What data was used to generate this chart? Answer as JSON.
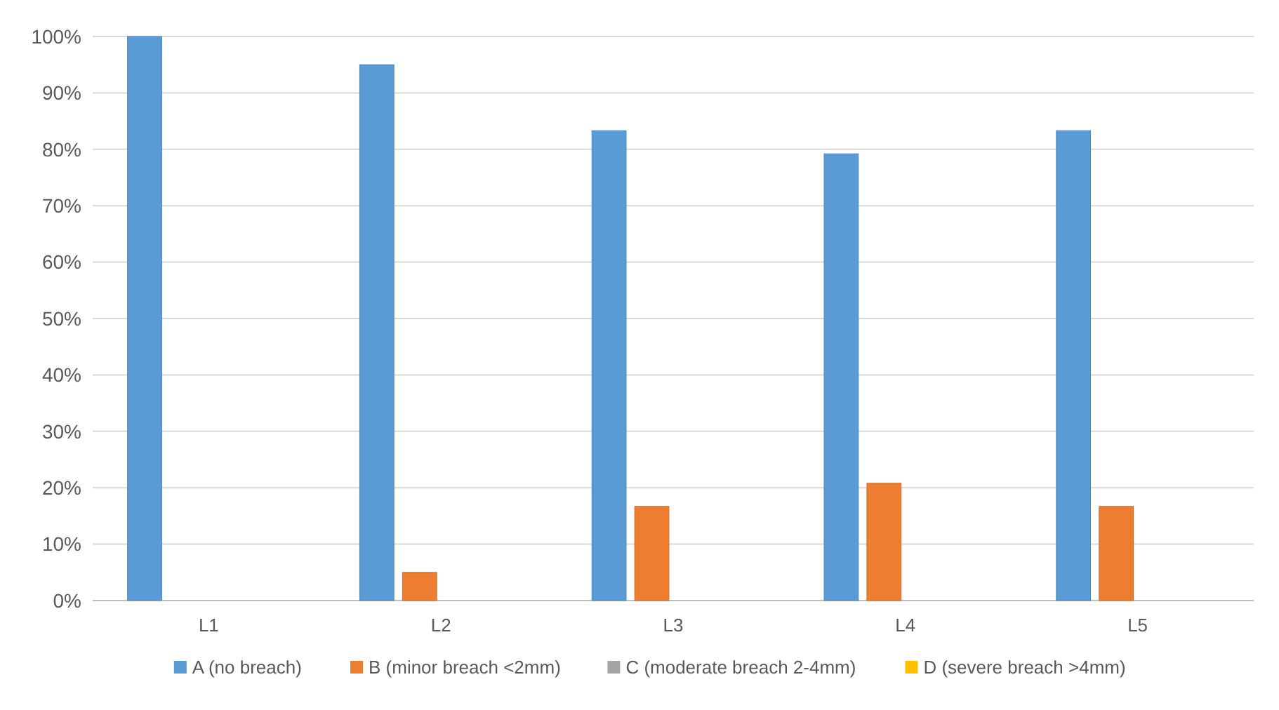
{
  "chart_data": {
    "type": "bar",
    "categories": [
      "L1",
      "L2",
      "L3",
      "L4",
      "L5"
    ],
    "series": [
      {
        "name": "A (no breach)",
        "color": "#5b9bd5",
        "values": [
          100,
          95,
          83.3,
          79.2,
          83.3
        ]
      },
      {
        "name": "B (minor breach <2mm)",
        "color": "#ed7d31",
        "values": [
          0,
          5,
          16.7,
          20.8,
          16.7
        ]
      },
      {
        "name": "C (moderate breach 2-4mm)",
        "color": "#a5a5a5",
        "values": [
          0,
          0,
          0,
          0,
          0
        ]
      },
      {
        "name": "D (severe breach >4mm)",
        "color": "#ffc000",
        "values": [
          0,
          0,
          0,
          0,
          0
        ]
      }
    ],
    "ylim": [
      0,
      100
    ],
    "yticks": [
      {
        "value": 0,
        "label": "0%"
      },
      {
        "value": 10,
        "label": "10%"
      },
      {
        "value": 20,
        "label": "20%"
      },
      {
        "value": 30,
        "label": "30%"
      },
      {
        "value": 40,
        "label": "40%"
      },
      {
        "value": 50,
        "label": "50%"
      },
      {
        "value": 60,
        "label": "60%"
      },
      {
        "value": 70,
        "label": "70%"
      },
      {
        "value": 80,
        "label": "80%"
      },
      {
        "value": 90,
        "label": "90%"
      },
      {
        "value": 100,
        "label": "100%"
      }
    ],
    "grid": "y",
    "legend": "bottom"
  }
}
